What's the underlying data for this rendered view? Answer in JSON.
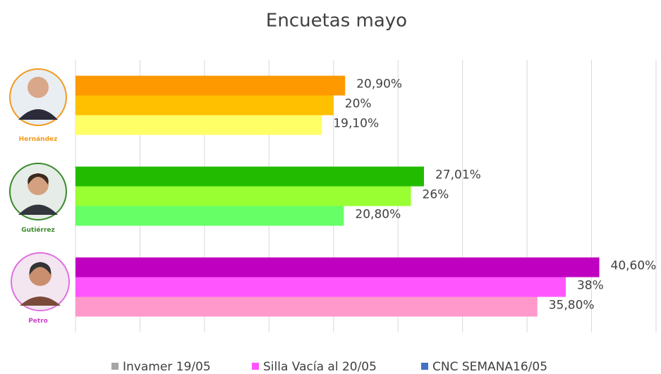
{
  "chart_data": {
    "type": "hbar",
    "title": "Encuetas mayo",
    "categories": [
      "Hernández",
      "Gutiérrez",
      "Petro"
    ],
    "category_colors": [
      "#f39a1e",
      "#3a8a2a",
      "#d040d0"
    ],
    "series": [
      {
        "name": "Invamer 19/05",
        "color": "#a6a6a6",
        "point_colors": [
          "#ffff66",
          "#66ff66",
          "#ff99cc"
        ],
        "values": [
          19.1,
          20.8,
          35.8
        ],
        "value_labels": [
          "19,10%",
          "20,80%",
          "35,80%"
        ]
      },
      {
        "name": "Silla Vacía al 20/05",
        "color": "#ff55ff",
        "point_colors": [
          "#ffc000",
          "#99ff33",
          "#ff55ff"
        ],
        "values": [
          20,
          26,
          38
        ],
        "value_labels": [
          "20%",
          "26%",
          "38%"
        ]
      },
      {
        "name": "CNC SEMANA16/05",
        "color": "#4472c4",
        "point_colors": [
          "#ff9900",
          "#22bb00",
          "#c000c0"
        ],
        "values": [
          20.9,
          27.01,
          40.6
        ],
        "value_labels": [
          "20,90%",
          "27,01%",
          "40,60%"
        ]
      }
    ],
    "xlim": [
      0,
      45
    ],
    "xticks": [
      0,
      5,
      10,
      15,
      20,
      25,
      30,
      35,
      40,
      45
    ],
    "grid": true
  }
}
